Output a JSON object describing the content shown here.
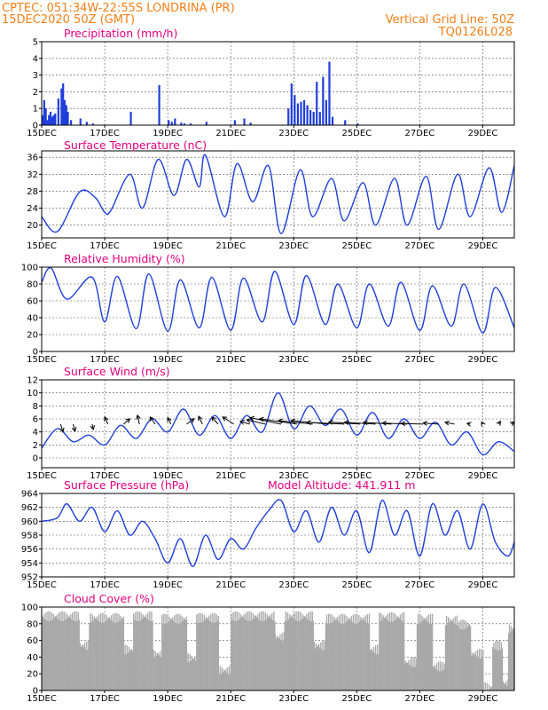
{
  "header": {
    "line1": "CPTEC:    051:34W-22:55S   LONDRINA (PR)",
    "line2": "15DEC2020 50Z (GMT)",
    "grid_note": "Vertical Grid Line: 50Z",
    "code": "TQ0126L028"
  },
  "colors": {
    "header": "#f57f17",
    "title": "#e6007e",
    "line": "#1f3fdc",
    "cloud": "#a9a9a9"
  },
  "chart_data": [
    {
      "id": "precip",
      "type": "bar",
      "title": "Precipitation (mm/h)",
      "ylim": [
        0,
        5
      ],
      "yticks": [
        0,
        1,
        2,
        3,
        4,
        5
      ],
      "x": [
        0.0,
        0.05,
        0.1,
        0.15,
        0.2,
        0.25,
        0.3,
        0.35,
        0.4,
        0.5,
        0.6,
        0.65,
        0.7,
        0.75,
        0.8,
        0.9,
        1.2,
        1.4,
        1.6,
        2.8,
        3.7,
        4.0,
        4.1,
        4.2,
        4.4,
        4.5,
        4.7,
        5.2,
        6.1,
        6.4,
        6.6,
        7.8,
        7.9,
        8.0,
        8.1,
        8.2,
        8.3,
        8.4,
        8.5,
        8.6,
        8.7,
        8.8,
        8.9,
        9.0,
        9.1,
        9.2,
        9.6,
        10.0
      ],
      "values": [
        0.6,
        1.5,
        1.0,
        0.3,
        0.6,
        0.8,
        0.5,
        0.6,
        0.7,
        1.6,
        2.2,
        2.5,
        1.5,
        1.2,
        0.8,
        0.3,
        0.4,
        0.2,
        0.1,
        0.8,
        2.4,
        0.3,
        0.2,
        0.4,
        0.15,
        0.1,
        0.1,
        0.2,
        0.3,
        0.4,
        0.15,
        1.0,
        2.5,
        1.8,
        1.3,
        1.4,
        1.5,
        1.2,
        0.9,
        0.8,
        2.6,
        0.8,
        2.9,
        1.5,
        3.8,
        0.5,
        0.3,
        0.1
      ]
    },
    {
      "id": "temp",
      "type": "line",
      "title": "Surface Temperature (nC)",
      "ylim": [
        17,
        37.5
      ],
      "yticks": [
        20,
        24,
        28,
        32,
        36
      ],
      "x": [
        0.0,
        0.5,
        1.2,
        1.7,
        2.0,
        2.2,
        2.8,
        3.2,
        3.7,
        4.2,
        4.6,
        5.0,
        5.2,
        5.8,
        6.2,
        6.7,
        7.2,
        7.6,
        8.2,
        8.6,
        9.2,
        9.6,
        10.2,
        10.6,
        11.2,
        11.6,
        12.2,
        12.6,
        13.2,
        13.6,
        14.2,
        14.6,
        15.0
      ],
      "values": [
        22,
        18.5,
        27.8,
        26.5,
        23,
        23.5,
        32,
        24,
        35.5,
        27,
        35.5,
        29,
        36.5,
        22,
        34.5,
        25.5,
        34,
        18,
        33,
        22,
        31,
        21,
        30,
        20,
        31,
        20,
        31.5,
        19,
        32,
        22,
        33.5,
        23,
        34
      ]
    },
    {
      "id": "rh",
      "type": "line",
      "title": "Relative Humidity (%)",
      "ylim": [
        0,
        100
      ],
      "yticks": [
        0,
        20,
        40,
        60,
        80,
        100
      ],
      "x": [
        0.0,
        0.3,
        0.8,
        1.6,
        2.0,
        2.4,
        3.0,
        3.4,
        4.0,
        4.4,
        5.0,
        5.4,
        6.0,
        6.4,
        7.0,
        7.4,
        8.0,
        8.4,
        9.0,
        9.4,
        10.0,
        10.4,
        11.0,
        11.4,
        12.0,
        12.4,
        13.0,
        13.4,
        14.0,
        14.4,
        15.0
      ],
      "values": [
        82,
        99,
        62,
        88,
        35,
        89,
        27,
        92,
        24,
        85,
        28,
        88,
        25,
        87,
        35,
        95,
        32,
        90,
        32,
        80,
        28,
        80,
        30,
        82,
        25,
        78,
        30,
        80,
        22,
        76,
        28
      ]
    },
    {
      "id": "wind",
      "type": "line",
      "title": "Surface Wind (m/s)",
      "ylim": [
        -1.5,
        12
      ],
      "yticks": [
        0,
        2,
        4,
        6,
        8,
        10,
        12
      ],
      "x": [
        0.0,
        0.5,
        1.0,
        1.5,
        2.0,
        2.5,
        3.0,
        3.5,
        4.0,
        4.5,
        5.0,
        5.5,
        6.0,
        6.5,
        7.0,
        7.5,
        8.0,
        8.5,
        9.0,
        9.5,
        10.0,
        10.5,
        11.0,
        11.5,
        12.0,
        12.5,
        13.0,
        13.5,
        14.0,
        14.5,
        15.0
      ],
      "values": [
        1.5,
        4.5,
        2.5,
        3.5,
        2.0,
        5.0,
        3.0,
        6.0,
        4.0,
        7.5,
        3.5,
        6.5,
        3.0,
        6.5,
        4.0,
        10.0,
        4.5,
        8.0,
        5.0,
        7.5,
        3.5,
        7.0,
        3.0,
        6.0,
        3.0,
        5.5,
        2.0,
        4.0,
        0.5,
        2.5,
        1.0
      ],
      "arrows": [
        {
          "x": 0.6,
          "u": 0.4,
          "v": -2.2
        },
        {
          "x": 1.0,
          "u": 0.3,
          "v": -2.0
        },
        {
          "x": 1.6,
          "u": 0.2,
          "v": -1.5
        },
        {
          "x": 2.1,
          "u": -0.5,
          "v": 2.0
        },
        {
          "x": 2.6,
          "u": 1.0,
          "v": 1.5
        },
        {
          "x": 3.1,
          "u": -0.3,
          "v": 2.5
        },
        {
          "x": 3.6,
          "u": -0.8,
          "v": 2.0
        },
        {
          "x": 4.1,
          "u": -0.5,
          "v": 1.8
        },
        {
          "x": 4.6,
          "u": 1.2,
          "v": 1.5
        },
        {
          "x": 5.1,
          "u": -0.6,
          "v": 2.2
        },
        {
          "x": 5.6,
          "u": -1.0,
          "v": 2.0
        },
        {
          "x": 6.1,
          "u": -1.8,
          "v": 2.0
        },
        {
          "x": 6.6,
          "u": -1.5,
          "v": 0.8
        },
        {
          "x": 7.1,
          "u": -3.0,
          "v": 1.2
        },
        {
          "x": 7.6,
          "u": -5.0,
          "v": 1.8
        },
        {
          "x": 8.1,
          "u": -6.0,
          "v": 1.5
        },
        {
          "x": 8.6,
          "u": -5.5,
          "v": 1.0
        },
        {
          "x": 9.1,
          "u": -6.0,
          "v": 1.0
        },
        {
          "x": 9.6,
          "u": -6.0,
          "v": 0.5
        },
        {
          "x": 10.1,
          "u": -5.0,
          "v": 0.6
        },
        {
          "x": 10.6,
          "u": -5.0,
          "v": 0.5
        },
        {
          "x": 11.1,
          "u": -4.5,
          "v": 0.5
        },
        {
          "x": 11.6,
          "u": -4.0,
          "v": 0.3
        },
        {
          "x": 12.1,
          "u": -3.5,
          "v": 0.2
        },
        {
          "x": 12.6,
          "u": -2.5,
          "v": 0.3
        },
        {
          "x": 13.1,
          "u": -1.5,
          "v": 0.5
        },
        {
          "x": 13.6,
          "u": -0.5,
          "v": 0.2
        },
        {
          "x": 14.0,
          "u": -0.2,
          "v": 0.6
        },
        {
          "x": 14.5,
          "u": 0.3,
          "v": 0.8
        },
        {
          "x": 14.9,
          "u": 0.5,
          "v": 0.6
        }
      ]
    },
    {
      "id": "press",
      "type": "line",
      "title": "Surface Pressure (hPa)",
      "note": "Model Altitude: 441.911 m",
      "ylim": [
        952,
        964
      ],
      "yticks": [
        952,
        954,
        956,
        958,
        960,
        962,
        964
      ],
      "x": [
        0.0,
        0.5,
        0.8,
        1.2,
        1.6,
        2.0,
        2.4,
        2.8,
        3.2,
        3.6,
        4.0,
        4.4,
        4.8,
        5.2,
        5.6,
        6.0,
        6.4,
        6.8,
        7.2,
        7.6,
        8.0,
        8.4,
        8.8,
        9.2,
        9.6,
        10.0,
        10.4,
        10.8,
        11.2,
        11.6,
        12.0,
        12.4,
        12.8,
        13.2,
        13.6,
        14.0,
        14.4,
        14.8,
        15.0
      ],
      "values": [
        960,
        960.5,
        962.5,
        960,
        962,
        958.5,
        961.5,
        958,
        960,
        957.5,
        954,
        957.5,
        953.5,
        958,
        954.5,
        957.5,
        956,
        959,
        961.5,
        963,
        958.5,
        961.5,
        957,
        962,
        958,
        961.5,
        955.5,
        963,
        958,
        961.5,
        955,
        962.5,
        958,
        961.5,
        956,
        962.5,
        957,
        955,
        957
      ]
    },
    {
      "id": "cloud",
      "type": "bar",
      "title": "Cloud Cover (%)",
      "ylim": [
        0,
        100
      ],
      "yticks": [
        0,
        20,
        40,
        60,
        80,
        100
      ],
      "segments": [
        [
          0.0,
          1.2,
          95
        ],
        [
          1.2,
          1.5,
          60
        ],
        [
          1.5,
          2.6,
          93
        ],
        [
          2.6,
          2.9,
          55
        ],
        [
          2.9,
          3.5,
          95
        ],
        [
          3.5,
          3.8,
          50
        ],
        [
          3.8,
          4.6,
          92
        ],
        [
          4.6,
          4.9,
          45
        ],
        [
          4.9,
          5.6,
          93
        ],
        [
          5.6,
          6.0,
          30
        ],
        [
          6.0,
          7.4,
          95
        ],
        [
          7.4,
          7.7,
          70
        ],
        [
          7.7,
          8.6,
          95
        ],
        [
          8.6,
          9.0,
          60
        ],
        [
          9.0,
          10.4,
          92
        ],
        [
          10.4,
          10.7,
          55
        ],
        [
          10.7,
          11.5,
          94
        ],
        [
          11.5,
          11.9,
          40
        ],
        [
          11.9,
          12.4,
          92
        ],
        [
          12.4,
          12.8,
          35
        ],
        [
          12.8,
          13.2,
          90
        ],
        [
          13.2,
          13.6,
          85
        ],
        [
          13.6,
          14.0,
          50
        ],
        [
          14.0,
          14.3,
          10
        ],
        [
          14.3,
          14.6,
          60
        ],
        [
          14.6,
          14.8,
          15
        ],
        [
          14.8,
          15.0,
          80
        ]
      ]
    }
  ],
  "x_axis": {
    "range": [
      0,
      15
    ],
    "ticks": [
      0,
      2,
      4,
      6,
      8,
      10,
      12,
      14
    ],
    "tick_labels": [
      "15DEC",
      "17DEC",
      "19DEC",
      "21DEC",
      "23DEC",
      "25DEC",
      "27DEC",
      "29DEC"
    ]
  }
}
